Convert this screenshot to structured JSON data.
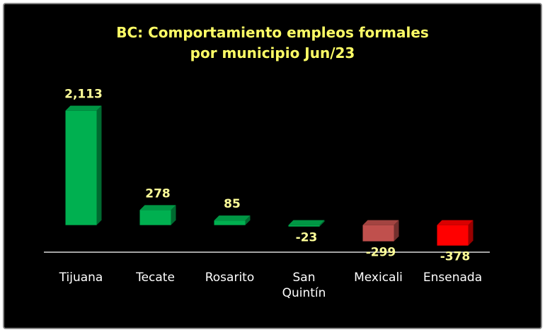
{
  "chart_data": {
    "type": "bar",
    "title": "BC:  Comportamiento empleos formales\npor municipio  Jun/23",
    "categories": [
      "Tijuana",
      "Tecate",
      "Rosarito",
      "San Quintín",
      "Mexicali",
      "Ensenada"
    ],
    "values": [
      2113,
      278,
      85,
      -23,
      -299,
      -378
    ],
    "value_labels": [
      "2,113",
      "278",
      "85",
      "-23",
      "-299",
      "-378"
    ],
    "colors": [
      "#00b050",
      "#00b050",
      "#00b050",
      "#00b050",
      "#c0504d",
      "#ff0000"
    ],
    "ylim": [
      -500,
      2500
    ]
  }
}
